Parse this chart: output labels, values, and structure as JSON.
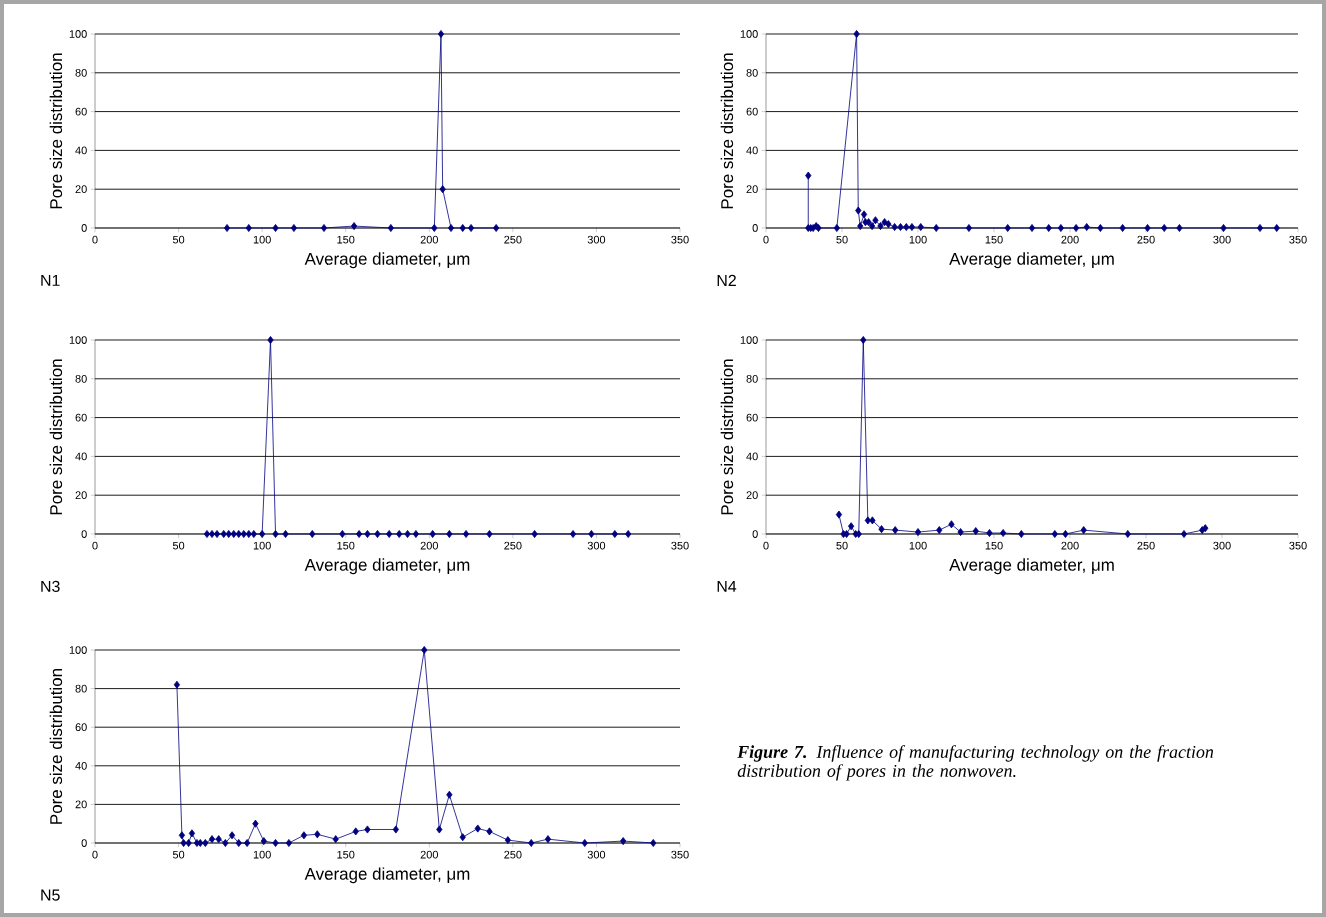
{
  "chart_data": [
    {
      "type": "line",
      "annotations": [
        "N1"
      ],
      "xlabel": "Average diameter, μm",
      "ylabel": "Pore size distribution",
      "color": "#000080",
      "marker": "diamond",
      "grid": "y",
      "xlim": [
        0,
        350
      ],
      "ylim": [
        0,
        100
      ],
      "xticks": [
        0,
        50,
        100,
        150,
        200,
        250,
        300,
        350
      ],
      "yticks": [
        0,
        20,
        40,
        60,
        80,
        100
      ],
      "x": [
        79,
        92,
        108,
        119,
        137,
        155,
        177,
        203,
        207,
        208,
        213,
        220,
        225,
        240
      ],
      "values": [
        0,
        0,
        0,
        0,
        0,
        1,
        0,
        0,
        100,
        20,
        0,
        0,
        0,
        0
      ]
    },
    {
      "type": "line",
      "annotations": [
        "N2"
      ],
      "xlabel": "Average diameter, μm",
      "ylabel": "Pore size distribution",
      "color": "#000080",
      "marker": "diamond",
      "grid": "y",
      "xlim": [
        0,
        350
      ],
      "ylim": [
        0,
        100
      ],
      "xticks": [
        0,
        50,
        100,
        150,
        200,
        250,
        300,
        350
      ],
      "yticks": [
        0,
        20,
        40,
        60,
        80,
        100
      ],
      "x": [
        27.8,
        27.8,
        29.4,
        31,
        33,
        34.5,
        46.6,
        59.6,
        60.7,
        62,
        64.5,
        65.4,
        67.5,
        69.8,
        72,
        75.3,
        78,
        80.5,
        84.6,
        88.5,
        92.3,
        96,
        101.8,
        112,
        133.5,
        159,
        175,
        186,
        194,
        204,
        211,
        220,
        234.6,
        251,
        262,
        272,
        301,
        325,
        336
      ],
      "values": [
        27,
        0,
        0,
        0,
        1,
        0,
        0,
        100,
        9,
        1,
        7,
        3,
        3,
        1,
        4,
        1,
        3,
        2,
        0.5,
        0.5,
        0.5,
        0.5,
        0.5,
        0,
        0,
        0,
        0,
        0,
        0,
        0,
        0.5,
        0,
        0,
        0,
        0,
        0,
        0,
        0,
        0
      ]
    },
    {
      "type": "line",
      "annotations": [
        "N3"
      ],
      "xlabel": "Average diameter, μm",
      "ylabel": "Pore size distribution",
      "color": "#000080",
      "marker": "diamond",
      "grid": "y",
      "xlim": [
        0,
        350
      ],
      "ylim": [
        0,
        100
      ],
      "xticks": [
        0,
        50,
        100,
        150,
        200,
        250,
        300,
        350
      ],
      "yticks": [
        0,
        20,
        40,
        60,
        80,
        100
      ],
      "x": [
        67,
        70,
        73,
        77,
        80,
        83,
        86,
        89,
        92,
        95,
        100,
        105,
        108,
        114,
        130,
        148,
        158,
        163,
        169,
        176,
        182,
        187,
        192,
        202,
        212,
        222,
        236,
        263,
        286,
        297,
        311,
        319
      ],
      "values": [
        0,
        0,
        0,
        0,
        0,
        0,
        0,
        0,
        0,
        0,
        0,
        100,
        0,
        0,
        0,
        0,
        0,
        0,
        0,
        0,
        0,
        0,
        0,
        0,
        0,
        0,
        0,
        0,
        0,
        0,
        0,
        0
      ]
    },
    {
      "type": "line",
      "annotations": [
        "N4"
      ],
      "xlabel": "Average diameter, μm",
      "ylabel": "Pore size distribution",
      "color": "#000080",
      "marker": "diamond",
      "grid": "y",
      "xlim": [
        0,
        350
      ],
      "ylim": [
        0,
        100
      ],
      "xticks": [
        0,
        50,
        100,
        150,
        200,
        250,
        300,
        350
      ],
      "yticks": [
        0,
        20,
        40,
        60,
        80,
        100
      ],
      "x": [
        48,
        51,
        53,
        56,
        59,
        61,
        64,
        67,
        70,
        76,
        85,
        100,
        114,
        122,
        128,
        138,
        147,
        156,
        168,
        190,
        197,
        209,
        238,
        275,
        287,
        289
      ],
      "values": [
        10,
        0,
        0,
        4,
        0,
        0,
        100,
        7,
        7,
        2.5,
        2,
        1,
        2,
        5,
        1,
        1.5,
        0.5,
        0.5,
        0,
        0,
        0,
        2,
        0,
        0,
        2,
        3
      ]
    },
    {
      "type": "line",
      "annotations": [
        "N5"
      ],
      "xlabel": "Average diameter, μm",
      "ylabel": "Pore size distribution",
      "color": "#000080",
      "marker": "diamond",
      "grid": "y",
      "xlim": [
        0,
        350
      ],
      "ylim": [
        0,
        100
      ],
      "xticks": [
        0,
        50,
        100,
        150,
        200,
        250,
        300,
        350
      ],
      "yticks": [
        0,
        20,
        40,
        60,
        80,
        100
      ],
      "x": [
        49,
        52,
        53,
        56,
        58,
        61,
        63,
        66,
        70,
        74,
        78,
        82,
        86,
        91,
        96,
        101,
        108,
        116,
        125,
        133,
        144,
        156,
        163,
        180,
        197,
        206,
        212,
        220,
        229,
        236,
        247,
        261,
        271,
        293,
        316,
        334
      ],
      "values": [
        82,
        4,
        0,
        0,
        5,
        0,
        0,
        0,
        2,
        2,
        0,
        4,
        0,
        0,
        10,
        1,
        0,
        0,
        4,
        4.5,
        2,
        6,
        7,
        7,
        100,
        7,
        25,
        3,
        7.5,
        6,
        1.5,
        0,
        2,
        0,
        1,
        0
      ]
    },
    {
      "type": "other",
      "annotations": [
        "**Figure 7.** Influence of manufacturing technology on the fraction distribution of pores in the nonwoven."
      ]
    }
  ]
}
